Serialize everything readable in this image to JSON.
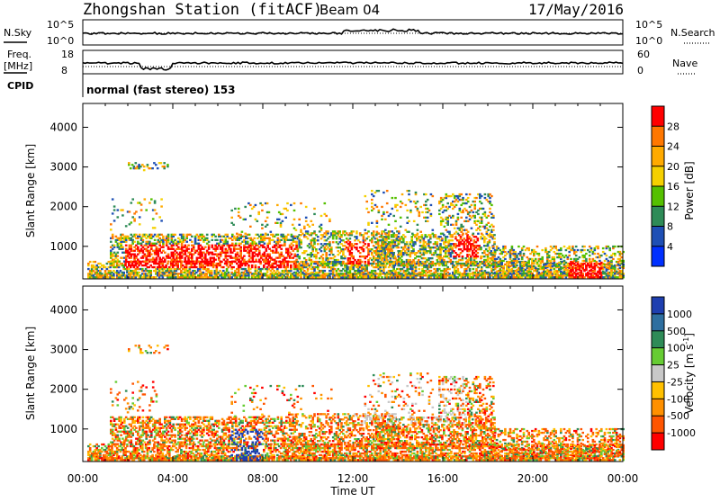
{
  "header": {
    "station": "Zhongshan Station (fitACF)",
    "beam": "Beam 04",
    "date": "17/May/2016"
  },
  "panels": {
    "nsky_label": "N.Sky",
    "nsearch_label": "N.Search",
    "count_ticks": [
      "10^5",
      "10^0"
    ],
    "freq_label": "Freq.",
    "freq_unit": "[MHz]",
    "freq_ticks": [
      "18",
      "8"
    ],
    "nave_label": "Nave",
    "nave_ticks": [
      "60",
      "0"
    ],
    "cpid_label": "CPID",
    "cpid_text": "normal (fast stereo) 153"
  },
  "chart_data": [
    {
      "type": "heatmap",
      "title": "",
      "xlabel": "Time UT",
      "ylabel": "Slant Range [km]",
      "colorbar_label": "Power [dB]",
      "x_ticks": [
        "00:00",
        "04:00",
        "08:00",
        "12:00",
        "16:00",
        "20:00",
        "00:00"
      ],
      "y_ticks": [
        1000,
        2000,
        3000,
        4000
      ],
      "ylim": [
        180,
        4600
      ],
      "color_ticks": [
        "28",
        "24",
        "20",
        "16",
        "12",
        "8",
        "4"
      ],
      "colors": [
        "#ff0000",
        "#ff7700",
        "#ffaa00",
        "#f5d000",
        "#55c000",
        "#2e8b57",
        "#1e4fb5",
        "#0030ff"
      ]
    },
    {
      "type": "heatmap",
      "title": "",
      "xlabel": "Time UT",
      "ylabel": "Slant Range [km]",
      "colorbar_label": "Velocity [m s",
      "colorbar_sup": "-1",
      "colorbar_close": "]",
      "x_ticks": [
        "00:00",
        "04:00",
        "08:00",
        "12:00",
        "16:00",
        "20:00",
        "00:00"
      ],
      "y_ticks": [
        1000,
        2000,
        3000,
        4000
      ],
      "ylim": [
        180,
        4600
      ],
      "color_ticks": [
        "1000",
        "500",
        "100",
        "25",
        "-25",
        "-100",
        "-500",
        "-1000"
      ],
      "colors": [
        "#1e3fb0",
        "#2e6fa0",
        "#2e8b57",
        "#66cc33",
        "#c8c8c8",
        "#ffc000",
        "#ff9000",
        "#ff5500",
        "#ff0000"
      ]
    }
  ],
  "footer": {
    "time_label": "Time UT"
  }
}
